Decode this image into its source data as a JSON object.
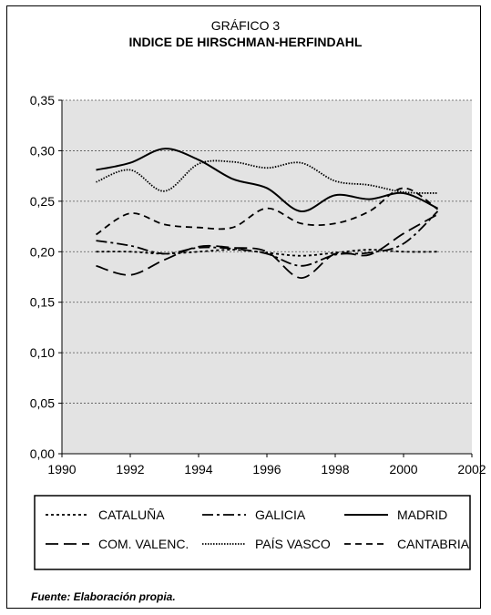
{
  "chart_data": {
    "type": "line",
    "supertitle": "GRÁFICO 3",
    "title": "INDICE DE HIRSCHMAN-HERFINDAHL",
    "xlim": [
      1990,
      2002
    ],
    "ylim": [
      0,
      0.35
    ],
    "x_ticks": [
      "1990",
      "1992",
      "1994",
      "1996",
      "1998",
      "2000",
      "2002"
    ],
    "y_ticks": [
      "0,00",
      "0,05",
      "0,10",
      "0,15",
      "0,20",
      "0,25",
      "0,30",
      "0,35"
    ],
    "grid": "horizontal dotted",
    "plot_background": "#e3e3e3",
    "legend_placement": "bottom",
    "x": [
      1991,
      1992,
      1993,
      1994,
      1995,
      1996,
      1997,
      1998,
      1999,
      2000,
      2001
    ],
    "series": [
      {
        "name": "CATALUÑA",
        "dash": "dotted-short",
        "values": [
          0.2,
          0.2,
          0.198,
          0.2,
          0.202,
          0.199,
          0.196,
          0.199,
          0.202,
          0.2,
          0.2
        ]
      },
      {
        "name": "GALICIA",
        "dash": "dashdot",
        "values": [
          0.211,
          0.206,
          0.198,
          0.204,
          0.203,
          0.198,
          0.186,
          0.197,
          0.199,
          0.208,
          0.24
        ]
      },
      {
        "name": "MADRID",
        "dash": "solid",
        "values": [
          0.281,
          0.288,
          0.302,
          0.291,
          0.272,
          0.263,
          0.24,
          0.256,
          0.252,
          0.258,
          0.243
        ]
      },
      {
        "name": "COM. VALENC.",
        "dash": "longdash",
        "values": [
          0.186,
          0.177,
          0.192,
          0.205,
          0.204,
          0.2,
          0.174,
          0.198,
          0.197,
          0.218,
          0.237
        ]
      },
      {
        "name": "PAÍS VASCO",
        "dash": "dotted-dense",
        "values": [
          0.269,
          0.281,
          0.26,
          0.287,
          0.289,
          0.283,
          0.288,
          0.27,
          0.266,
          0.259,
          0.258
        ]
      },
      {
        "name": "CANTABRIA",
        "dash": "dashed",
        "values": [
          0.217,
          0.238,
          0.227,
          0.224,
          0.224,
          0.243,
          0.228,
          0.228,
          0.24,
          0.263,
          0.242
        ]
      }
    ]
  },
  "footer": {
    "source": "Fuente: Elaboración propia."
  }
}
